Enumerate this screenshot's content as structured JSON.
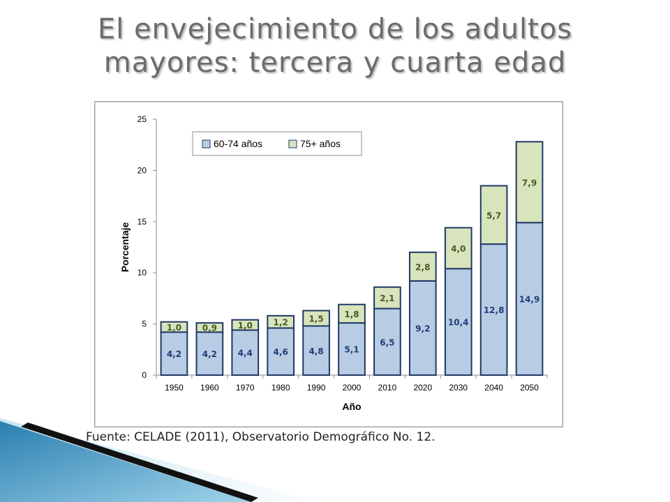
{
  "slide": {
    "title_line1": "El envejecimiento de los adultos",
    "title_line2": "mayores: tercera y cuarta edad",
    "source": "Fuente: CELADE (2011), Observatorio Demográfico No. 12."
  },
  "chart_data": {
    "type": "bar",
    "stacked": true,
    "categories": [
      "1950",
      "1960",
      "1970",
      "1980",
      "1990",
      "2000",
      "2010",
      "2020",
      "2030",
      "2040",
      "2050"
    ],
    "series": [
      {
        "name": "60-74 años",
        "values": [
          4.2,
          4.2,
          4.4,
          4.6,
          4.8,
          5.1,
          6.5,
          9.2,
          10.4,
          12.8,
          14.9
        ],
        "labels": [
          "4,2",
          "4,2",
          "4,4",
          "4,6",
          "4,8",
          "5,1",
          "6,5",
          "9,2",
          "10,4",
          "12,8",
          "14,9"
        ],
        "color": "#b8cce4",
        "label_color": "#1f3d7a"
      },
      {
        "name": "75+ años",
        "values": [
          1.0,
          0.9,
          1.0,
          1.2,
          1.5,
          1.8,
          2.1,
          2.8,
          4.0,
          5.7,
          7.9
        ],
        "labels": [
          "1,0",
          "0,9",
          "1,0",
          "1,2",
          "1,5",
          "1,8",
          "2,1",
          "2,8",
          "4,0",
          "5,7",
          "7,9"
        ],
        "color": "#d7e4bc",
        "label_color": "#4a5a22"
      }
    ],
    "title": "",
    "xlabel": "Año",
    "ylabel": "Porcentaje",
    "ylim": [
      0,
      25
    ],
    "yticks": [
      "0",
      "5",
      "10",
      "15",
      "20",
      "25"
    ],
    "grid": false,
    "legend": "top-left",
    "outline_color": "#1f3864"
  }
}
